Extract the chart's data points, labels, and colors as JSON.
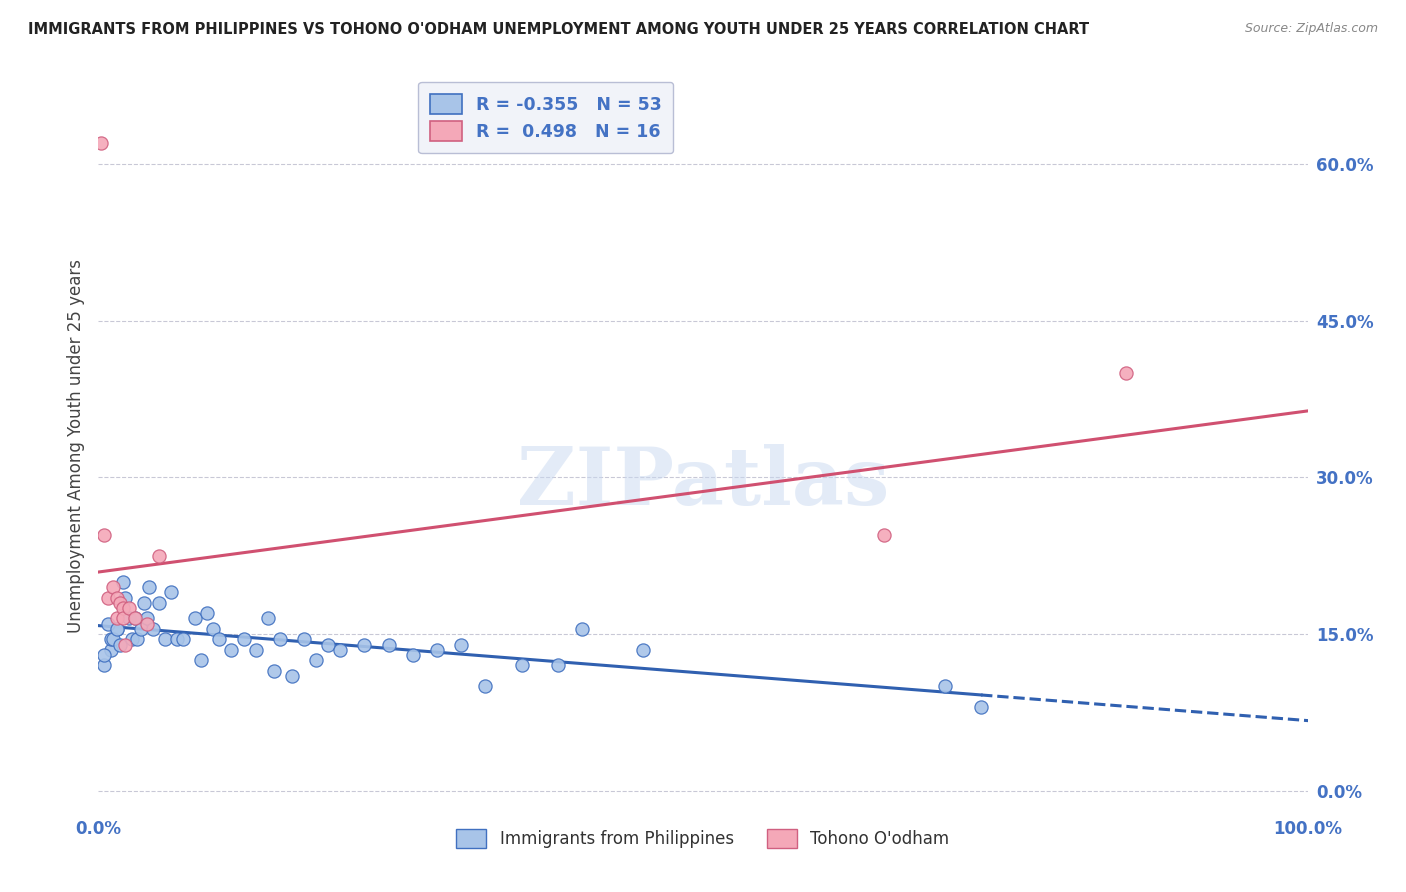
{
  "title": "IMMIGRANTS FROM PHILIPPINES VS TOHONO O'ODHAM UNEMPLOYMENT AMONG YOUTH UNDER 25 YEARS CORRELATION CHART",
  "source": "Source: ZipAtlas.com",
  "ylabel": "Unemployment Among Youth under 25 years",
  "xlim": [
    0,
    1.0
  ],
  "ylim": [
    -0.02,
    0.68
  ],
  "yticks": [
    0.0,
    0.15,
    0.3,
    0.45,
    0.6
  ],
  "ytick_labels": [
    "0.0%",
    "15.0%",
    "30.0%",
    "45.0%",
    "60.0%"
  ],
  "xticks": [
    0.0,
    1.0
  ],
  "xtick_labels": [
    "0.0%",
    "100.0%"
  ],
  "blue_R": -0.355,
  "blue_N": 53,
  "pink_R": 0.498,
  "pink_N": 16,
  "blue_color": "#a8c4e8",
  "pink_color": "#f4a8b8",
  "blue_edge_color": "#4070c0",
  "pink_edge_color": "#d06080",
  "blue_line_color": "#3060b0",
  "pink_line_color": "#d05070",
  "blue_scatter_x": [
    0.01,
    0.015,
    0.005,
    0.01,
    0.008,
    0.012,
    0.005,
    0.018,
    0.022,
    0.025,
    0.015,
    0.02,
    0.03,
    0.028,
    0.032,
    0.035,
    0.038,
    0.042,
    0.04,
    0.045,
    0.05,
    0.055,
    0.06,
    0.065,
    0.07,
    0.08,
    0.085,
    0.09,
    0.095,
    0.1,
    0.11,
    0.12,
    0.13,
    0.14,
    0.145,
    0.15,
    0.16,
    0.17,
    0.18,
    0.19,
    0.2,
    0.22,
    0.24,
    0.26,
    0.28,
    0.3,
    0.32,
    0.35,
    0.38,
    0.4,
    0.45,
    0.7,
    0.73
  ],
  "blue_scatter_y": [
    0.135,
    0.155,
    0.12,
    0.145,
    0.16,
    0.145,
    0.13,
    0.14,
    0.185,
    0.165,
    0.155,
    0.2,
    0.165,
    0.145,
    0.145,
    0.155,
    0.18,
    0.195,
    0.165,
    0.155,
    0.18,
    0.145,
    0.19,
    0.145,
    0.145,
    0.165,
    0.125,
    0.17,
    0.155,
    0.145,
    0.135,
    0.145,
    0.135,
    0.165,
    0.115,
    0.145,
    0.11,
    0.145,
    0.125,
    0.14,
    0.135,
    0.14,
    0.14,
    0.13,
    0.135,
    0.14,
    0.1,
    0.12,
    0.12,
    0.155,
    0.135,
    0.1,
    0.08
  ],
  "pink_scatter_x": [
    0.002,
    0.005,
    0.008,
    0.012,
    0.015,
    0.018,
    0.015,
    0.02,
    0.022,
    0.02,
    0.025,
    0.03,
    0.04,
    0.05,
    0.65,
    0.85
  ],
  "pink_scatter_y": [
    0.62,
    0.245,
    0.185,
    0.195,
    0.185,
    0.18,
    0.165,
    0.175,
    0.14,
    0.165,
    0.175,
    0.165,
    0.16,
    0.225,
    0.245,
    0.4
  ],
  "watermark": "ZIPatlas",
  "background_color": "#ffffff",
  "legend_box_facecolor": "#eef0f8",
  "legend_box_edgecolor": "#aab0cc",
  "grid_color": "#bbbbcc",
  "title_fontsize": 10.5,
  "source_fontsize": 9,
  "axis_tick_color": "#4472c4",
  "ylabel_color": "#444444",
  "title_color": "#222222"
}
